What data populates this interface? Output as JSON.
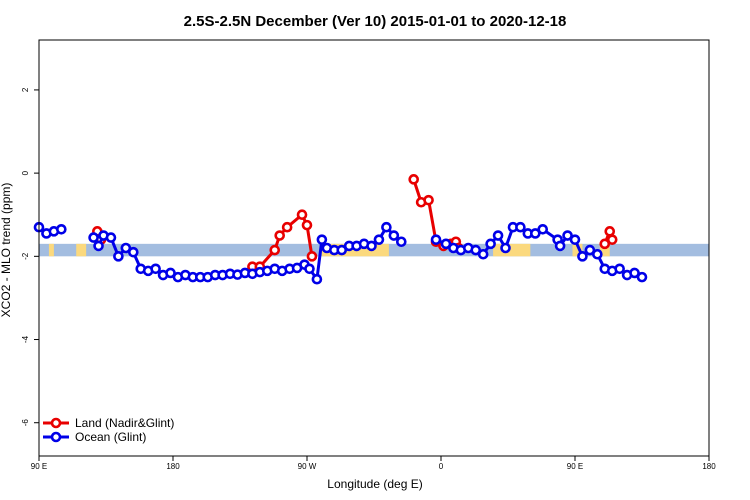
{
  "chart_data": {
    "type": "line",
    "title": "2.5S-2.5N December (Ver 10)   2015-01-01 to 2020-12-18",
    "xlabel": "Longitude (deg E)",
    "ylabel": "XCO2 - MLO trend (ppm)",
    "xlim": [
      -90,
      180
    ],
    "ylim": [
      -6.8,
      3.2
    ],
    "x_ticks": [
      {
        "value": -90,
        "label": "90 E"
      },
      {
        "value": -36,
        "label": "180"
      },
      {
        "value": 18,
        "label": "90 W"
      },
      {
        "value": 72,
        "label": "0"
      },
      {
        "value": 126,
        "label": "90 E"
      },
      {
        "value": 180,
        "label": "180"
      }
    ],
    "y_ticks": [
      {
        "value": 2,
        "label": "2"
      },
      {
        "value": 0,
        "label": "0"
      },
      {
        "value": -2,
        "label": "-2"
      },
      {
        "value": -4,
        "label": "-4"
      },
      {
        "value": -6,
        "label": "-6"
      }
    ],
    "band": {
      "y_min": -2.0,
      "y_max": -1.7,
      "color": "#a3bde0"
    },
    "land_strips": [
      [
        -86,
        -84
      ],
      [
        -75,
        -71
      ],
      [
        24,
        51
      ],
      [
        93,
        108
      ],
      [
        125,
        129
      ],
      [
        136,
        140
      ]
    ],
    "land_color": "#fbd97e",
    "legend_position": "bottom-left",
    "series": [
      {
        "name": "Land (Nadir&Glint)",
        "color": "#e80000",
        "points": [
          [
            -66.5,
            -1.4
          ],
          [
            -65,
            -1.6
          ],
          [
            -4,
            -2.25
          ],
          [
            -1,
            -2.25
          ],
          [
            5,
            -1.85
          ],
          [
            7,
            -1.5
          ],
          [
            10,
            -1.3
          ],
          [
            16,
            -1.0
          ],
          [
            18,
            -1.25
          ],
          [
            20,
            -2.0
          ],
          [
            61,
            -0.15
          ],
          [
            64,
            -0.7
          ],
          [
            67,
            -0.65
          ],
          [
            70,
            -1.65
          ],
          [
            73,
            -1.75
          ],
          [
            76,
            -1.7
          ],
          [
            78,
            -1.65
          ],
          [
            79,
            -1.8
          ],
          [
            138,
            -1.7
          ],
          [
            140,
            -1.4
          ],
          [
            141,
            -1.6
          ]
        ]
      },
      {
        "name": "Ocean (Glint)",
        "color": "#0000e8",
        "points": [
          [
            -90,
            -1.3
          ],
          [
            -87,
            -1.45
          ],
          [
            -84,
            -1.4
          ],
          [
            -81,
            -1.35
          ],
          [
            -68,
            -1.55
          ],
          [
            -66,
            -1.75
          ],
          [
            -64,
            -1.5
          ],
          [
            -61,
            -1.55
          ],
          [
            -58,
            -2.0
          ],
          [
            -55,
            -1.8
          ],
          [
            -52,
            -1.9
          ],
          [
            -49,
            -2.3
          ],
          [
            -46,
            -2.35
          ],
          [
            -43,
            -2.3
          ],
          [
            -40,
            -2.45
          ],
          [
            -37,
            -2.4
          ],
          [
            -34,
            -2.5
          ],
          [
            -31,
            -2.45
          ],
          [
            -28,
            -2.5
          ],
          [
            -25,
            -2.5
          ],
          [
            -22,
            -2.5
          ],
          [
            -19,
            -2.45
          ],
          [
            -16,
            -2.45
          ],
          [
            -13,
            -2.42
          ],
          [
            -10,
            -2.44
          ],
          [
            -7,
            -2.4
          ],
          [
            -4,
            -2.42
          ],
          [
            -1,
            -2.38
          ],
          [
            2,
            -2.35
          ],
          [
            5,
            -2.3
          ],
          [
            8,
            -2.35
          ],
          [
            11,
            -2.3
          ],
          [
            14,
            -2.28
          ],
          [
            17,
            -2.2
          ],
          [
            19,
            -2.3
          ],
          [
            22,
            -2.55
          ],
          [
            24,
            -1.6
          ],
          [
            26,
            -1.8
          ],
          [
            29,
            -1.85
          ],
          [
            32,
            -1.85
          ],
          [
            35,
            -1.75
          ],
          [
            38,
            -1.75
          ],
          [
            41,
            -1.7
          ],
          [
            44,
            -1.75
          ],
          [
            47,
            -1.6
          ],
          [
            50,
            -1.3
          ],
          [
            53,
            -1.5
          ],
          [
            56,
            -1.65
          ],
          [
            70,
            -1.6
          ],
          [
            74,
            -1.7
          ],
          [
            77,
            -1.8
          ],
          [
            80,
            -1.85
          ],
          [
            83,
            -1.8
          ],
          [
            86,
            -1.85
          ],
          [
            89,
            -1.95
          ],
          [
            92,
            -1.7
          ],
          [
            95,
            -1.5
          ],
          [
            98,
            -1.8
          ],
          [
            101,
            -1.3
          ],
          [
            104,
            -1.3
          ],
          [
            107,
            -1.45
          ],
          [
            110,
            -1.45
          ],
          [
            113,
            -1.35
          ],
          [
            119,
            -1.6
          ],
          [
            120,
            -1.75
          ],
          [
            123,
            -1.5
          ],
          [
            126,
            -1.6
          ],
          [
            129,
            -2.0
          ],
          [
            132,
            -1.85
          ],
          [
            135,
            -1.95
          ],
          [
            138,
            -2.3
          ],
          [
            141,
            -2.35
          ],
          [
            144,
            -2.3
          ],
          [
            147,
            -2.45
          ],
          [
            150,
            -2.4
          ],
          [
            153,
            -2.5
          ]
        ]
      }
    ]
  }
}
